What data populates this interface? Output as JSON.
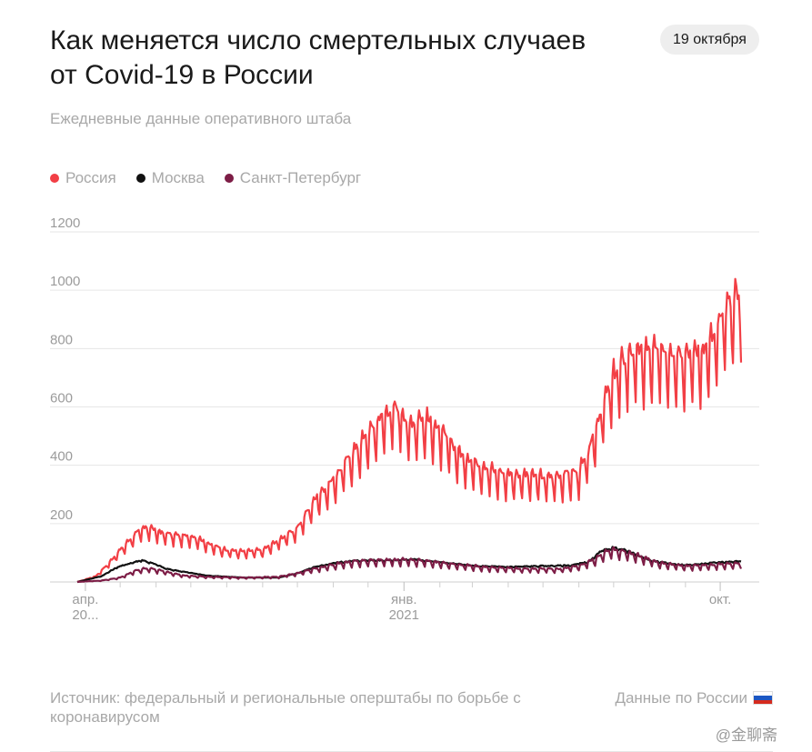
{
  "header": {
    "title": "Как меняется число смертельных случаев от Covid-19 в России",
    "date": "19 октября",
    "subtitle": "Ежедневные данные оперативного штаба"
  },
  "colors": {
    "russia": "#f23f45",
    "moscow": "#111111",
    "spb": "#7d1d46",
    "grid": "#e6e6e6",
    "axis_text": "#9b9b9b"
  },
  "chart_data": {
    "type": "line",
    "title": "Как меняется число смертельных случаев от Covid-19 в России",
    "subtitle": "Ежедневные данные оперативного штаба",
    "xlabel": "",
    "ylabel": "",
    "x_range": [
      "2020-03-25",
      "2021-10-19"
    ],
    "ylim": [
      0,
      1200
    ],
    "y_ticks": [
      200,
      400,
      600,
      800,
      1000,
      1200
    ],
    "x_ticks": [
      {
        "date": "2020-04-01",
        "label": [
          "апр.",
          "20..."
        ]
      },
      {
        "date": "2021-01-01",
        "label": [
          "янв.",
          "2021"
        ]
      },
      {
        "date": "2021-10-01",
        "label": [
          "окт.",
          ""
        ]
      }
    ],
    "x_minor_ticks": [
      "2020-05-01",
      "2020-06-01",
      "2020-07-01",
      "2020-08-01",
      "2020-09-01",
      "2020-10-01",
      "2020-11-01",
      "2020-12-01",
      "2021-02-01",
      "2021-03-01",
      "2021-04-01",
      "2021-05-01",
      "2021-06-01",
      "2021-07-01",
      "2021-08-01",
      "2021-09-01"
    ],
    "grid": true,
    "legend_position": "top-left",
    "series": [
      {
        "name": "Россия",
        "key": "russia",
        "weekly_dip": 0.24,
        "points": [
          [
            "2020-03-25",
            0
          ],
          [
            "2020-04-10",
            20
          ],
          [
            "2020-04-20",
            60
          ],
          [
            "2020-05-01",
            110
          ],
          [
            "2020-05-15",
            170
          ],
          [
            "2020-05-25",
            190
          ],
          [
            "2020-06-05",
            170
          ],
          [
            "2020-06-20",
            160
          ],
          [
            "2020-07-05",
            155
          ],
          [
            "2020-07-20",
            125
          ],
          [
            "2020-08-01",
            110
          ],
          [
            "2020-08-15",
            105
          ],
          [
            "2020-09-01",
            110
          ],
          [
            "2020-09-15",
            145
          ],
          [
            "2020-10-01",
            185
          ],
          [
            "2020-10-15",
            280
          ],
          [
            "2020-11-01",
            350
          ],
          [
            "2020-11-15",
            430
          ],
          [
            "2020-12-01",
            510
          ],
          [
            "2020-12-15",
            580
          ],
          [
            "2020-12-28",
            600
          ],
          [
            "2021-01-05",
            540
          ],
          [
            "2021-01-15",
            565
          ],
          [
            "2021-01-25",
            550
          ],
          [
            "2021-02-05",
            500
          ],
          [
            "2021-02-20",
            435
          ],
          [
            "2021-03-05",
            410
          ],
          [
            "2021-03-20",
            380
          ],
          [
            "2021-04-05",
            370
          ],
          [
            "2021-04-20",
            365
          ],
          [
            "2021-05-05",
            360
          ],
          [
            "2021-05-20",
            370
          ],
          [
            "2021-06-01",
            380
          ],
          [
            "2021-06-10",
            450
          ],
          [
            "2021-06-20",
            590
          ],
          [
            "2021-07-01",
            710
          ],
          [
            "2021-07-15",
            790
          ],
          [
            "2021-08-01",
            795
          ],
          [
            "2021-08-15",
            795
          ],
          [
            "2021-09-01",
            790
          ],
          [
            "2021-09-15",
            795
          ],
          [
            "2021-09-25",
            840
          ],
          [
            "2021-10-05",
            930
          ],
          [
            "2021-10-19",
            1015
          ]
        ]
      },
      {
        "name": "Москва",
        "key": "moscow",
        "weekly_dip": 0.04,
        "points": [
          [
            "2020-03-25",
            0
          ],
          [
            "2020-04-15",
            20
          ],
          [
            "2020-04-28",
            50
          ],
          [
            "2020-05-10",
            65
          ],
          [
            "2020-05-20",
            75
          ],
          [
            "2020-06-01",
            60
          ],
          [
            "2020-06-10",
            45
          ],
          [
            "2020-06-25",
            35
          ],
          [
            "2020-07-15",
            22
          ],
          [
            "2020-08-15",
            15
          ],
          [
            "2020-09-15",
            15
          ],
          [
            "2020-10-01",
            30
          ],
          [
            "2020-10-15",
            50
          ],
          [
            "2020-11-01",
            65
          ],
          [
            "2020-11-15",
            72
          ],
          [
            "2020-12-01",
            75
          ],
          [
            "2020-12-20",
            75
          ],
          [
            "2021-01-10",
            78
          ],
          [
            "2021-01-25",
            72
          ],
          [
            "2021-02-15",
            62
          ],
          [
            "2021-03-05",
            55
          ],
          [
            "2021-04-01",
            52
          ],
          [
            "2021-05-01",
            55
          ],
          [
            "2021-05-25",
            57
          ],
          [
            "2021-06-10",
            70
          ],
          [
            "2021-06-20",
            105
          ],
          [
            "2021-06-30",
            118
          ],
          [
            "2021-07-10",
            110
          ],
          [
            "2021-07-20",
            95
          ],
          [
            "2021-08-01",
            75
          ],
          [
            "2021-08-15",
            65
          ],
          [
            "2021-09-01",
            58
          ],
          [
            "2021-09-15",
            62
          ],
          [
            "2021-10-01",
            68
          ],
          [
            "2021-10-19",
            72
          ]
        ]
      },
      {
        "name": "Санкт-Петербург",
        "key": "spb",
        "weekly_dip": 0.3,
        "points": [
          [
            "2020-03-25",
            0
          ],
          [
            "2020-04-15",
            5
          ],
          [
            "2020-05-01",
            15
          ],
          [
            "2020-05-15",
            40
          ],
          [
            "2020-05-25",
            48
          ],
          [
            "2020-06-10",
            35
          ],
          [
            "2020-06-25",
            22
          ],
          [
            "2020-07-15",
            18
          ],
          [
            "2020-08-15",
            15
          ],
          [
            "2020-09-15",
            18
          ],
          [
            "2020-10-01",
            30
          ],
          [
            "2020-10-15",
            45
          ],
          [
            "2020-11-01",
            60
          ],
          [
            "2020-11-20",
            72
          ],
          [
            "2020-12-10",
            75
          ],
          [
            "2021-01-05",
            78
          ],
          [
            "2021-01-25",
            70
          ],
          [
            "2021-02-15",
            60
          ],
          [
            "2021-03-15",
            50
          ],
          [
            "2021-04-15",
            45
          ],
          [
            "2021-05-15",
            45
          ],
          [
            "2021-06-01",
            55
          ],
          [
            "2021-06-15",
            80
          ],
          [
            "2021-06-28",
            112
          ],
          [
            "2021-07-10",
            105
          ],
          [
            "2021-07-25",
            88
          ],
          [
            "2021-08-10",
            65
          ],
          [
            "2021-09-01",
            55
          ],
          [
            "2021-09-20",
            58
          ],
          [
            "2021-10-19",
            65
          ]
        ]
      }
    ]
  },
  "footer": {
    "source": "Источник: федеральный и региональные оперштабы по борьбе с коронавирусом",
    "link": "Данные по России",
    "watermark": "@金聊斋"
  },
  "flag_colors": [
    "#ffffff",
    "#1c57c3",
    "#d52b1e"
  ],
  "icons": {
    "flag": "russia-flag-icon",
    "watermark": "weibo-icon"
  }
}
